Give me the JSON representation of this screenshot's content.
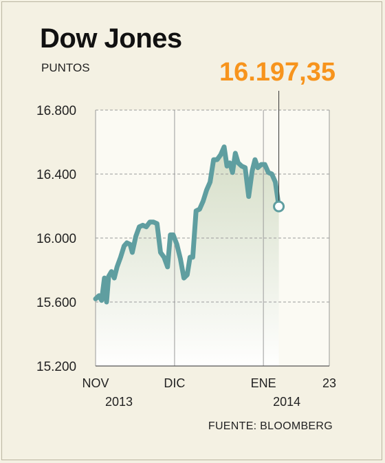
{
  "header": {
    "title": "Dow Jones",
    "unit": "PUNTOS",
    "last_value_label": "16.197,35"
  },
  "footer": {
    "source": "FUENTE: BLOOMBERG"
  },
  "colors": {
    "background": "#f4f1e3",
    "line": "#5f9ea0",
    "accent": "#f7941d",
    "grid": "#9a9a9a"
  },
  "chart_data": {
    "type": "area",
    "title": "Dow Jones",
    "ylabel": "PUNTOS",
    "ylim": [
      15200,
      16800
    ],
    "yticks": [
      15200,
      15600,
      16000,
      16400,
      16800
    ],
    "ytick_labels": [
      "15.200",
      "15.600",
      "16.000",
      "16.400",
      "16.800"
    ],
    "xlim": [
      0,
      100
    ],
    "xticks": [
      {
        "x": 0,
        "label": "NOV",
        "sublabel": "2013"
      },
      {
        "x": 33.8,
        "label": "DIC",
        "sublabel": ""
      },
      {
        "x": 71.8,
        "label": "ENE",
        "sublabel": "2014"
      },
      {
        "x": 100,
        "label": "23",
        "sublabel": ""
      }
    ],
    "grid": "vertical at month starts, dashed horizontal",
    "last_point_label": "16.197,35",
    "series": [
      {
        "points": [
          [
            0,
            15620
          ],
          [
            1.5,
            15640
          ],
          [
            2.6,
            15610
          ],
          [
            3.8,
            15750
          ],
          [
            4.7,
            15600
          ],
          [
            5.6,
            15760
          ],
          [
            6.8,
            15790
          ],
          [
            8.0,
            15750
          ],
          [
            9.2,
            15820
          ],
          [
            10.7,
            15880
          ],
          [
            12.2,
            15950
          ],
          [
            13.4,
            15970
          ],
          [
            14.8,
            15960
          ],
          [
            15.7,
            15910
          ],
          [
            17.2,
            16010
          ],
          [
            18.7,
            16070
          ],
          [
            20.2,
            16080
          ],
          [
            21.7,
            16070
          ],
          [
            23.2,
            16100
          ],
          [
            24.8,
            16100
          ],
          [
            26.3,
            16090
          ],
          [
            27.8,
            15910
          ],
          [
            29.3,
            15880
          ],
          [
            30.8,
            15820
          ],
          [
            32.0,
            16020
          ],
          [
            33.2,
            16020
          ],
          [
            34.8,
            15960
          ],
          [
            36.3,
            15870
          ],
          [
            37.8,
            15750
          ],
          [
            39.2,
            15770
          ],
          [
            40.4,
            15880
          ],
          [
            41.6,
            15880
          ],
          [
            43.0,
            16170
          ],
          [
            44.5,
            16180
          ],
          [
            46.0,
            16230
          ],
          [
            47.5,
            16300
          ],
          [
            49.0,
            16350
          ],
          [
            50.5,
            16490
          ],
          [
            52.0,
            16490
          ],
          [
            53.5,
            16520
          ],
          [
            55.0,
            16570
          ],
          [
            56.2,
            16450
          ],
          [
            57.4,
            16470
          ],
          [
            58.6,
            16410
          ],
          [
            59.8,
            16530
          ],
          [
            61.0,
            16470
          ],
          [
            62.5,
            16450
          ],
          [
            64.0,
            16440
          ],
          [
            65.5,
            16260
          ],
          [
            67.0,
            16420
          ],
          [
            68.2,
            16490
          ],
          [
            69.4,
            16440
          ],
          [
            70.9,
            16460
          ],
          [
            72.4,
            16460
          ],
          [
            73.9,
            16410
          ],
          [
            75.4,
            16400
          ],
          [
            76.9,
            16350
          ],
          [
            78.4,
            16197.35
          ]
        ]
      }
    ]
  }
}
